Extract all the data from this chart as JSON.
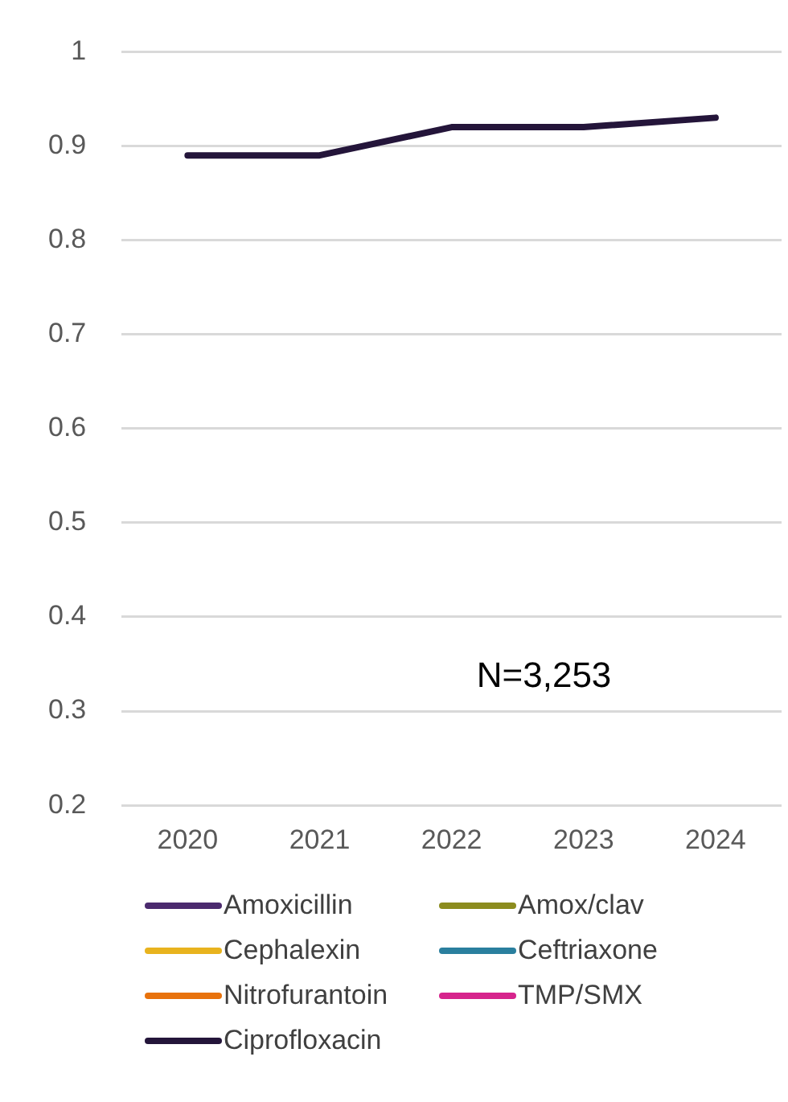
{
  "chart_data": {
    "type": "line",
    "categories": [
      "2020",
      "2021",
      "2022",
      "2023",
      "2024"
    ],
    "series": [
      {
        "name": "Amoxicillin",
        "color": "#4b2a6e",
        "values": [
          null,
          null,
          null,
          null,
          null
        ]
      },
      {
        "name": "Amox/clav",
        "color": "#8c8c1e",
        "values": [
          null,
          null,
          null,
          null,
          null
        ]
      },
      {
        "name": "Cephalexin",
        "color": "#e8b31e",
        "values": [
          null,
          null,
          null,
          null,
          null
        ]
      },
      {
        "name": "Ceftriaxone",
        "color": "#2a7f9e",
        "values": [
          null,
          null,
          null,
          null,
          null
        ]
      },
      {
        "name": "Nitrofurantoin",
        "color": "#e8720c",
        "values": [
          null,
          null,
          null,
          null,
          null
        ]
      },
      {
        "name": "TMP/SMX",
        "color": "#d6248c",
        "values": [
          null,
          null,
          null,
          null,
          null
        ]
      },
      {
        "name": "Ciprofloxacin",
        "color": "#24153a",
        "values": [
          0.89,
          0.89,
          0.92,
          0.92,
          0.93
        ]
      }
    ],
    "ylim": [
      0.2,
      1
    ],
    "yticks": [
      0.2,
      0.3,
      0.4,
      0.5,
      0.6,
      0.7,
      0.8,
      0.9,
      1
    ],
    "grid": "y",
    "legend": "bottom",
    "marker": "none",
    "line_style": "solid",
    "annotations": [
      "N=3,253"
    ]
  }
}
